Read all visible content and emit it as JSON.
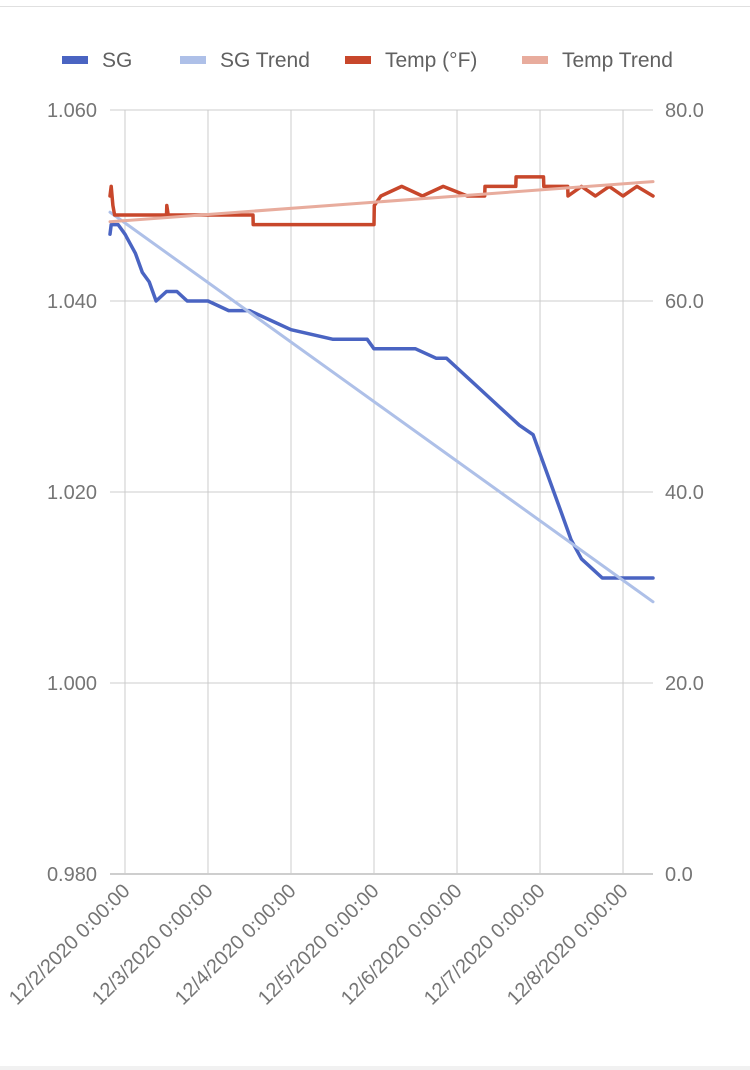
{
  "chart_data": {
    "type": "line",
    "legend_position": "top",
    "grid": true,
    "x_axis": {
      "ticks": [
        "12/2/2020 0:00:00",
        "12/3/2020 0:00:00",
        "12/4/2020 0:00:00",
        "12/5/2020 0:00:00",
        "12/6/2020 0:00:00",
        "12/7/2020 0:00:00",
        "12/8/2020 0:00:00"
      ],
      "range": [
        "12/1/2020 19:40",
        "12/8/2020 8:40"
      ]
    },
    "y_left": {
      "ticks": [
        "1.060",
        "1.040",
        "1.020",
        "1.000",
        "0.980"
      ],
      "range": [
        0.98,
        1.06
      ]
    },
    "y_right": {
      "ticks": [
        "80.0",
        "60.0",
        "40.0",
        "20.0",
        "0.0"
      ],
      "range": [
        0,
        80
      ]
    },
    "series": [
      {
        "name": "SG",
        "color": "#4a64c2",
        "axis": "left",
        "style": "line",
        "points": [
          [
            "12/1/2020 19:40",
            1.047
          ],
          [
            "12/1/2020 20:00",
            1.048
          ],
          [
            "12/1/2020 22:00",
            1.048
          ],
          [
            "12/2/2020 0:00",
            1.047
          ],
          [
            "12/2/2020 3:00",
            1.045
          ],
          [
            "12/2/2020 5:00",
            1.043
          ],
          [
            "12/2/2020 7:00",
            1.042
          ],
          [
            "12/2/2020 9:00",
            1.04
          ],
          [
            "12/2/2020 12:00",
            1.041
          ],
          [
            "12/2/2020 15:00",
            1.041
          ],
          [
            "12/2/2020 18:00",
            1.04
          ],
          [
            "12/2/2020 21:00",
            1.04
          ],
          [
            "12/3/2020 0:00",
            1.04
          ],
          [
            "12/3/2020 6:00",
            1.039
          ],
          [
            "12/3/2020 12:00",
            1.039
          ],
          [
            "12/3/2020 18:00",
            1.038
          ],
          [
            "12/4/2020 0:00",
            1.037
          ],
          [
            "12/4/2020 12:00",
            1.036
          ],
          [
            "12/4/2020 22:00",
            1.036
          ],
          [
            "12/5/2020 0:00",
            1.035
          ],
          [
            "12/5/2020 6:00",
            1.035
          ],
          [
            "12/5/2020 12:00",
            1.035
          ],
          [
            "12/5/2020 18:00",
            1.034
          ],
          [
            "12/5/2020 21:00",
            1.034
          ],
          [
            "12/6/2020 0:00",
            1.033
          ],
          [
            "12/6/2020 6:00",
            1.031
          ],
          [
            "12/6/2020 12:00",
            1.029
          ],
          [
            "12/6/2020 18:00",
            1.027
          ],
          [
            "12/6/2020 22:00",
            1.026
          ],
          [
            "12/7/2020 0:00",
            1.024
          ],
          [
            "12/7/2020 3:00",
            1.021
          ],
          [
            "12/7/2020 6:00",
            1.018
          ],
          [
            "12/7/2020 9:00",
            1.015
          ],
          [
            "12/7/2020 12:00",
            1.013
          ],
          [
            "12/7/2020 15:00",
            1.012
          ],
          [
            "12/7/2020 18:00",
            1.011
          ],
          [
            "12/7/2020 21:00",
            1.011
          ],
          [
            "12/8/2020 0:00",
            1.011
          ],
          [
            "12/8/2020 4:00",
            1.011
          ],
          [
            "12/8/2020 8:40",
            1.011
          ]
        ]
      },
      {
        "name": "SG Trend",
        "color": "#aec0e8",
        "axis": "left",
        "style": "trend",
        "points": [
          [
            "12/1/2020 19:40",
            1.0493
          ],
          [
            "12/8/2020 8:40",
            1.0085
          ]
        ]
      },
      {
        "name": "Temp (°F)",
        "color": "#c8472b",
        "axis": "right",
        "style": "line",
        "points": [
          [
            "12/1/2020 19:40",
            71
          ],
          [
            "12/1/2020 20:00",
            72
          ],
          [
            "12/1/2020 20:30",
            70
          ],
          [
            "12/1/2020 21:00",
            69
          ],
          [
            "12/2/2020 12:00",
            69
          ],
          [
            "12/2/2020 12:05",
            70
          ],
          [
            "12/2/2020 12:30",
            69
          ],
          [
            "12/3/2020 13:00",
            69
          ],
          [
            "12/3/2020 13:05",
            68
          ],
          [
            "12/4/2020 22:00",
            68
          ],
          [
            "12/5/2020 0:00",
            68
          ],
          [
            "12/5/2020 0:05",
            70
          ],
          [
            "12/5/2020 2:00",
            71
          ],
          [
            "12/5/2020 8:00",
            72
          ],
          [
            "12/5/2020 14:00",
            71
          ],
          [
            "12/5/2020 20:00",
            72
          ],
          [
            "12/6/2020 3:00",
            71
          ],
          [
            "12/6/2020 8:00",
            71
          ],
          [
            "12/6/2020 8:05",
            72
          ],
          [
            "12/6/2020 17:00",
            72
          ],
          [
            "12/6/2020 17:05",
            73
          ],
          [
            "12/7/2020 1:00",
            73
          ],
          [
            "12/7/2020 1:05",
            72
          ],
          [
            "12/7/2020 8:00",
            72
          ],
          [
            "12/7/2020 8:05",
            71
          ],
          [
            "12/7/2020 12:00",
            72
          ],
          [
            "12/7/2020 16:00",
            71
          ],
          [
            "12/7/2020 20:00",
            72
          ],
          [
            "12/8/2020 0:00",
            71
          ],
          [
            "12/8/2020 4:00",
            72
          ],
          [
            "12/8/2020 8:40",
            71
          ]
        ]
      },
      {
        "name": "Temp Trend",
        "color": "#e8ac9d",
        "axis": "right",
        "style": "trend",
        "points": [
          [
            "12/1/2020 19:40",
            68.3
          ],
          [
            "12/8/2020 8:40",
            72.5
          ]
        ]
      }
    ]
  }
}
